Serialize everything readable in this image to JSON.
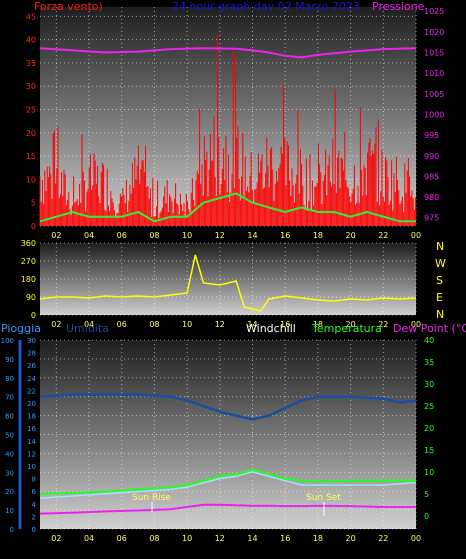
{
  "top_panel": {
    "left_title": "Forza vento)",
    "center_title": "24 hour graph day  02 Marzo 2023",
    "right_title": "Pressione"
  },
  "compass_letters": [
    "N",
    "W",
    "S",
    "E",
    "N"
  ],
  "bottom_panel": {
    "labels": {
      "pioggia": "Pioggia",
      "umidita": "Umidita",
      "windchill": "Windchill",
      "temperatura": "Temperatura",
      "dewpoint": "Dew Point (°C)"
    },
    "annotations": {
      "sunrise": "Sun Rise",
      "sunset": "Sun Set"
    }
  },
  "colors": {
    "wind": "#ff0000",
    "wind_avg": "#33ee33",
    "pressure": "#ee22ee",
    "direction": "#ffff00",
    "humidity": "#1a4fa0",
    "temperature": "#22ff22",
    "windchill": "#aaddff",
    "dewpoint": "#ee22ee",
    "time_tick": "#ffff66"
  },
  "chart_data": [
    {
      "type": "line",
      "name": "wind-pressure",
      "x_ticks": [
        "02",
        "04",
        "06",
        "08",
        "10",
        "12",
        "14",
        "16",
        "18",
        "20",
        "22",
        "00"
      ],
      "y_left_ticks": [
        "0",
        "5",
        "10",
        "15",
        "20",
        "25",
        "30",
        "35",
        "40",
        "45"
      ],
      "y_left_range": [
        0,
        47
      ],
      "y_right_ticks": [
        "975",
        "980",
        "985",
        "990",
        "995",
        "1000",
        "1005",
        "1010",
        "1015",
        "1020",
        "1025"
      ],
      "y_right_range": [
        973,
        1026
      ],
      "x_range": [
        1,
        24
      ],
      "series": [
        {
          "key": "wind_gust",
          "x": [
            1,
            2,
            3,
            4,
            5,
            6,
            7,
            8,
            9,
            10,
            11,
            12,
            13,
            14,
            15,
            16,
            17,
            18,
            19,
            20,
            21,
            22,
            23,
            24
          ],
          "y": [
            18,
            17,
            8,
            16,
            15,
            8,
            18,
            6,
            12,
            5,
            22,
            28,
            24,
            16,
            22,
            20,
            17,
            14,
            20,
            16,
            22,
            17,
            16,
            10
          ]
        },
        {
          "key": "wind_avg",
          "x": [
            1,
            2,
            3,
            4,
            5,
            6,
            7,
            8,
            9,
            10,
            11,
            12,
            13,
            14,
            15,
            16,
            17,
            18,
            19,
            20,
            21,
            22,
            23,
            24
          ],
          "y": [
            1,
            2,
            3,
            2,
            2,
            2,
            3,
            1,
            2,
            2,
            5,
            6,
            7,
            5,
            4,
            3,
            4,
            3,
            3,
            2,
            3,
            2,
            1,
            1
          ]
        },
        {
          "key": "pressure",
          "x": [
            1,
            3,
            5,
            7,
            9,
            11,
            13,
            14,
            15,
            16,
            17,
            18,
            20,
            22,
            24
          ],
          "y": [
            1016,
            1015.5,
            1015,
            1015.2,
            1015.8,
            1016,
            1015.9,
            1015.5,
            1015,
            1014.2,
            1013.8,
            1014.4,
            1015.2,
            1015.8,
            1016
          ]
        }
      ]
    },
    {
      "type": "line",
      "name": "wind-direction",
      "x_ticks": [
        "02",
        "04",
        "06",
        "08",
        "10",
        "12",
        "14",
        "16",
        "18",
        "20",
        "22",
        "00"
      ],
      "y_ticks": [
        "0",
        "90",
        "180",
        "270",
        "360"
      ],
      "y_range": [
        0,
        360
      ],
      "x_range": [
        1,
        24
      ],
      "series": [
        {
          "key": "direction",
          "x": [
            1,
            2,
            3,
            4,
            5,
            6,
            7,
            8,
            9,
            10,
            10.5,
            11,
            12,
            13,
            13.5,
            14,
            14.5,
            15,
            16,
            17,
            18,
            19,
            20,
            21,
            22,
            23,
            24
          ],
          "y": [
            80,
            90,
            90,
            85,
            95,
            90,
            95,
            90,
            100,
            110,
            300,
            160,
            150,
            170,
            40,
            30,
            20,
            80,
            95,
            85,
            75,
            70,
            80,
            75,
            85,
            80,
            85
          ]
        }
      ]
    },
    {
      "type": "line",
      "name": "humidity-temperature",
      "x_ticks": [
        "02",
        "04",
        "06",
        "08",
        "10",
        "12",
        "14",
        "16",
        "18",
        "20",
        "22",
        "00"
      ],
      "y_left_outer_ticks": [
        "0",
        "10",
        "20",
        "30",
        "40",
        "50",
        "60",
        "70",
        "80",
        "90",
        "100"
      ],
      "y_left_inner_ticks": [
        "0",
        "2",
        "4",
        "6",
        "8",
        "10",
        "12",
        "14",
        "16",
        "18",
        "20",
        "22",
        "24",
        "26",
        "28",
        "30"
      ],
      "y_right_ticks": [
        "0",
        "5",
        "10",
        "15",
        "20",
        "25",
        "30",
        "35",
        "40"
      ],
      "y_right_range": [
        -3,
        40
      ],
      "y_humidity_range": [
        0,
        100
      ],
      "x_range": [
        1,
        24
      ],
      "series": [
        {
          "key": "humidity",
          "x": [
            1,
            3,
            5,
            7,
            9,
            10,
            11,
            12,
            13,
            14,
            15,
            16,
            17,
            18,
            20,
            22,
            23,
            24
          ],
          "y": [
            70,
            71,
            71,
            71,
            70,
            68,
            65,
            62,
            60,
            58,
            60,
            64,
            68,
            70,
            70,
            69,
            67,
            68
          ]
        },
        {
          "key": "temperature",
          "x": [
            1,
            3,
            5,
            7,
            9,
            10,
            11,
            12,
            13,
            14,
            15,
            16,
            17,
            18,
            20,
            22,
            24
          ],
          "y": [
            5,
            5.2,
            5.5,
            6,
            6.5,
            7,
            8,
            9,
            9.5,
            10.5,
            9.5,
            8.5,
            8,
            7.8,
            8,
            8,
            8
          ]
        },
        {
          "key": "windchill",
          "x": [
            1,
            3,
            5,
            7,
            9,
            10,
            11,
            12,
            13,
            14,
            15,
            16,
            17,
            18,
            20,
            22,
            24
          ],
          "y": [
            4,
            4.5,
            5,
            5.5,
            6,
            6.5,
            7.5,
            8.5,
            9,
            10,
            9,
            8,
            7,
            7,
            7,
            7,
            7.5
          ]
        },
        {
          "key": "dewpoint",
          "x": [
            1,
            3,
            5,
            7,
            9,
            10,
            11,
            12,
            13,
            14,
            15,
            16,
            17,
            18,
            20,
            22,
            24
          ],
          "y": [
            0.5,
            0.7,
            1,
            1.2,
            1.5,
            2,
            2.5,
            2.5,
            2.4,
            2.3,
            2.3,
            2.2,
            2.2,
            2.3,
            2.2,
            2,
            2
          ]
        }
      ]
    }
  ]
}
